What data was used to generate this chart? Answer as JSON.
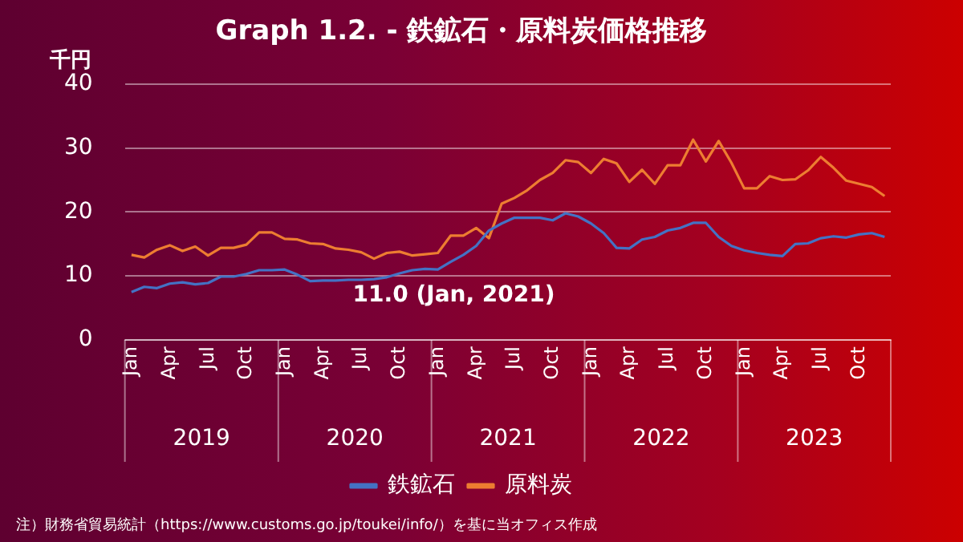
{
  "chart_data": {
    "type": "line",
    "title": "Graph 1.2. - 鉄鉱石・原料炭価格推移",
    "ylabel": "千円",
    "x": [
      "2019-01",
      "2019-02",
      "2019-03",
      "2019-04",
      "2019-05",
      "2019-06",
      "2019-07",
      "2019-08",
      "2019-09",
      "2019-10",
      "2019-11",
      "2019-12",
      "2020-01",
      "2020-02",
      "2020-03",
      "2020-04",
      "2020-05",
      "2020-06",
      "2020-07",
      "2020-08",
      "2020-09",
      "2020-10",
      "2020-11",
      "2020-12",
      "2021-01",
      "2021-02",
      "2021-03",
      "2021-04",
      "2021-05",
      "2021-06",
      "2021-07",
      "2021-08",
      "2021-09",
      "2021-10",
      "2021-11",
      "2021-12",
      "2022-01",
      "2022-02",
      "2022-03",
      "2022-04",
      "2022-05",
      "2022-06",
      "2022-07",
      "2022-08",
      "2022-09",
      "2022-10",
      "2022-11",
      "2022-12",
      "2023-01",
      "2023-02",
      "2023-03",
      "2023-04",
      "2023-05",
      "2023-06",
      "2023-07",
      "2023-08",
      "2023-09",
      "2023-10",
      "2023-11",
      "2023-12"
    ],
    "xlim": [
      "2018-12-16",
      "2023-12-16"
    ],
    "xticks": [
      {
        "value": "2019-01",
        "label": "Jan"
      },
      {
        "value": "2019-04",
        "label": "Apr"
      },
      {
        "value": "2019-07",
        "label": "Jul"
      },
      {
        "value": "2019-10",
        "label": "Oct"
      },
      {
        "value": "2020-01",
        "label": "Jan"
      },
      {
        "value": "2020-04",
        "label": "Apr"
      },
      {
        "value": "2020-07",
        "label": "Jul"
      },
      {
        "value": "2020-10",
        "label": "Oct"
      },
      {
        "value": "2021-01",
        "label": "Jan"
      },
      {
        "value": "2021-04",
        "label": "Apr"
      },
      {
        "value": "2021-07",
        "label": "Jul"
      },
      {
        "value": "2021-10",
        "label": "Oct"
      },
      {
        "value": "2022-01",
        "label": "Jan"
      },
      {
        "value": "2022-04",
        "label": "Apr"
      },
      {
        "value": "2022-07",
        "label": "Jul"
      },
      {
        "value": "2022-10",
        "label": "Oct"
      },
      {
        "value": "2023-01",
        "label": "Jan"
      },
      {
        "value": "2023-04",
        "label": "Apr"
      },
      {
        "value": "2023-07",
        "label": "Jul"
      },
      {
        "value": "2023-10",
        "label": "Oct"
      }
    ],
    "ylim": [
      0,
      40
    ],
    "yticks": [
      0,
      10,
      20,
      30,
      40
    ],
    "grid": "y",
    "legend": "bottom",
    "marker": "none",
    "line_style": "solid",
    "series": [
      {
        "name": "鉄鉱石",
        "color": "#4472c4",
        "values": [
          7.5,
          8.3,
          8.1,
          8.8,
          9.0,
          8.7,
          8.9,
          9.9,
          9.9,
          10.3,
          10.9,
          10.9,
          11.0,
          10.2,
          9.2,
          9.3,
          9.3,
          9.4,
          9.4,
          9.5,
          9.8,
          10.4,
          10.9,
          11.1,
          11.0,
          12.2,
          13.3,
          14.7,
          17.1,
          18.2,
          19.1,
          19.1,
          19.1,
          18.7,
          19.8,
          19.3,
          18.2,
          16.7,
          14.4,
          14.3,
          15.7,
          16.1,
          17.1,
          17.5,
          18.3,
          18.3,
          16.1,
          14.7,
          14.0,
          13.6,
          13.3,
          13.1,
          15.0,
          15.1,
          15.9,
          16.2,
          16.0,
          16.5,
          16.7,
          16.1
        ]
      },
      {
        "name": "原料炭",
        "color": "#ed7d31",
        "values": [
          13.3,
          12.9,
          14.1,
          14.8,
          13.9,
          14.6,
          13.2,
          14.4,
          14.4,
          14.9,
          16.8,
          16.8,
          15.8,
          15.7,
          15.1,
          15.0,
          14.3,
          14.1,
          13.7,
          12.7,
          13.6,
          13.8,
          13.2,
          13.4,
          13.6,
          16.3,
          16.3,
          17.5,
          15.9,
          21.3,
          22.2,
          23.4,
          25.0,
          26.1,
          28.1,
          27.8,
          26.1,
          28.3,
          27.6,
          24.7,
          26.6,
          24.4,
          27.3,
          27.3,
          31.3,
          27.9,
          31.1,
          27.7,
          23.7,
          23.7,
          25.6,
          25.0,
          25.1,
          26.5,
          28.6,
          26.9,
          24.9,
          24.4,
          23.9,
          22.5
        ]
      }
    ],
    "annotations": [
      {
        "text": "11.0 (Jan, 2021)",
        "x": "2021-01",
        "y": 11.0
      },
      "2019",
      "2020",
      "2021",
      "2022",
      "2023",
      "注）財務省貿易統計（https://www.customs.go.jp/toukei/info/）を基に当オフィス作成"
    ]
  }
}
